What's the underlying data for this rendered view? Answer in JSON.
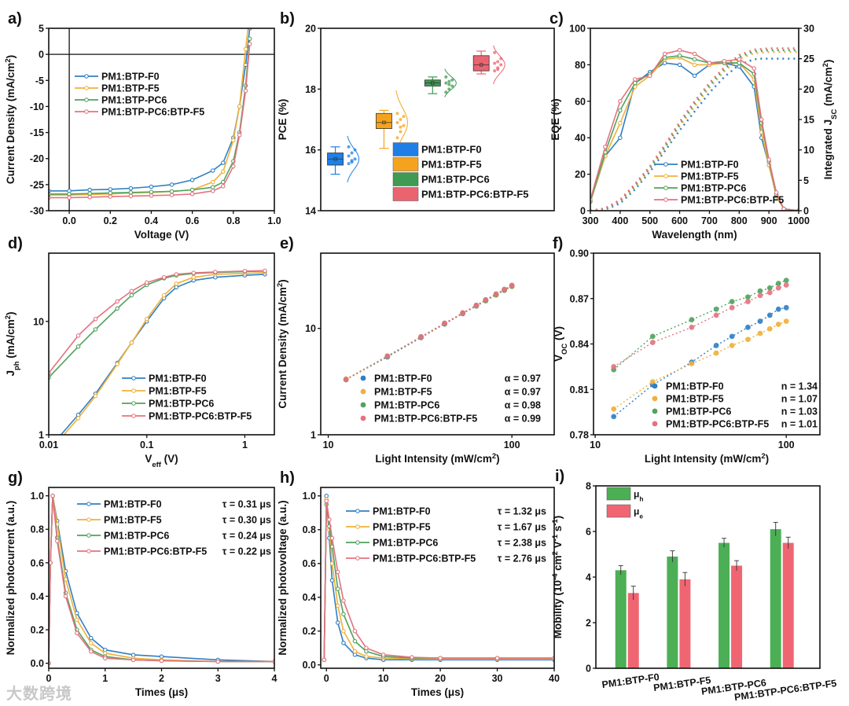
{
  "watermark": "大数跨境",
  "colors": {
    "F0": "#2f7fc4",
    "F5": "#f0b03a",
    "PC6": "#4fa35e",
    "PC6F5": "#e4727f",
    "box_F0": "#1f7fe6",
    "box_F5": "#f5a31f",
    "box_PC6": "#3f9a52",
    "box_PC6F5": "#ea6470",
    "mu_h": "#4caf55",
    "mu_e": "#ef6672"
  },
  "chart_data": [
    {
      "id": "a",
      "panel_label": "a)",
      "type": "line",
      "xlabel": "Voltage (V)",
      "ylabel": "Current Density (mA/cm^{2})",
      "xlim": [
        -0.1,
        1.0
      ],
      "ylim": [
        -30,
        5
      ],
      "xticks": [
        "0.0",
        "0.2",
        "0.4",
        "0.6",
        "0.8",
        "1.0"
      ],
      "yticks": [
        "-30",
        "-25",
        "-20",
        "-15",
        "-10",
        "-5",
        "0",
        "5"
      ],
      "x": [
        -0.1,
        0,
        0.1,
        0.2,
        0.3,
        0.4,
        0.5,
        0.6,
        0.7,
        0.75,
        0.8,
        0.83,
        0.86,
        0.88
      ],
      "series": [
        {
          "name": "PM1:BTP-F0",
          "color": "F0",
          "values": [
            -26.2,
            -26.2,
            -26.0,
            -25.9,
            -25.7,
            -25.4,
            -25.0,
            -24.1,
            -22.3,
            -20.8,
            -16,
            -10,
            -2,
            5
          ]
        },
        {
          "name": "PM1:BTP-F5",
          "color": "F5",
          "values": [
            -27.0,
            -27.0,
            -26.9,
            -26.8,
            -26.6,
            -26.5,
            -26.3,
            -26.0,
            -24.5,
            -22.5,
            -16.5,
            -10,
            1,
            8
          ]
        },
        {
          "name": "PM1:BTP-PC6",
          "color": "PC6",
          "values": [
            -26.8,
            -26.8,
            -26.7,
            -26.6,
            -26.5,
            -26.4,
            -26.3,
            -26.0,
            -25.5,
            -24.5,
            -20.5,
            -15,
            -6,
            3
          ]
        },
        {
          "name": "PM1:BTP-PC6:BTP-F5",
          "color": "PC6F5",
          "values": [
            -27.5,
            -27.5,
            -27.4,
            -27.3,
            -27.2,
            -27.1,
            -27.0,
            -26.8,
            -26.2,
            -25.3,
            -21.5,
            -15.5,
            -7,
            2
          ]
        }
      ]
    },
    {
      "id": "b",
      "panel_label": "b)",
      "type": "box",
      "xlabel": "",
      "ylabel": "PCE (%)",
      "ylim": [
        14,
        20
      ],
      "yticks": [
        "14",
        "16",
        "18",
        "20"
      ],
      "series": [
        {
          "name": "PM1:BTP-F0",
          "color": "box_F0",
          "mean": 15.7,
          "q1": 15.5,
          "q3": 15.9,
          "min": 15.2,
          "max": 16.1,
          "points": [
            15.55,
            15.6,
            15.7,
            15.8,
            15.9,
            16.0,
            16.1,
            15.65
          ]
        },
        {
          "name": "PM1:BTP-F5",
          "color": "box_F5",
          "mean": 16.9,
          "q1": 16.7,
          "q3": 17.2,
          "min": 16.05,
          "max": 17.3,
          "points": [
            16.4,
            16.6,
            16.8,
            16.9,
            17.0,
            17.1,
            17.2,
            16.75
          ]
        },
        {
          "name": "PM1:BTP-PC6",
          "color": "box_PC6",
          "mean": 18.2,
          "q1": 18.1,
          "q3": 18.3,
          "min": 17.85,
          "max": 18.4,
          "points": [
            17.9,
            18.0,
            18.1,
            18.2,
            18.25,
            18.3,
            18.4,
            18.15
          ]
        },
        {
          "name": "PM1:BTP-PC6:BTP-F5",
          "color": "box_PC6F5",
          "mean": 18.8,
          "q1": 18.6,
          "q3": 19.1,
          "min": 18.5,
          "max": 19.25,
          "points": [
            18.6,
            18.7,
            18.8,
            18.85,
            18.9,
            19.0,
            19.2,
            18.65
          ]
        }
      ]
    },
    {
      "id": "c",
      "panel_label": "c)",
      "type": "line",
      "xlabel": "Wavelength (nm)",
      "ylabel": "EQE (%)",
      "y2label": "Integrated J_{SC} (mA/cm^{2})",
      "xlim": [
        300,
        1000
      ],
      "ylim": [
        0,
        100
      ],
      "y2lim": [
        0,
        30
      ],
      "xticks": [
        "300",
        "400",
        "500",
        "600",
        "700",
        "800",
        "900",
        "1000"
      ],
      "yticks": [
        "0",
        "20",
        "40",
        "60",
        "80",
        "100"
      ],
      "y2ticks": [
        "0",
        "5",
        "10",
        "15",
        "20",
        "25",
        "30"
      ],
      "x": [
        300,
        350,
        400,
        450,
        500,
        550,
        600,
        650,
        700,
        750,
        800,
        850,
        875,
        900,
        925,
        950,
        1000
      ],
      "series": [
        {
          "name": "PM1:BTP-F0",
          "color": "F0",
          "values": [
            5,
            30,
            40,
            70,
            76,
            81,
            80,
            74,
            80,
            81,
            79,
            68,
            40,
            25,
            8,
            1,
            0
          ],
          "jsc": [
            0,
            0.2,
            1.2,
            3.5,
            6.4,
            9.8,
            13.2,
            16.3,
            19.4,
            22.0,
            24.0,
            24.9,
            25.0,
            25.0,
            25.0,
            25.0,
            25.0
          ]
        },
        {
          "name": "PM1:BTP-F5",
          "color": "F5",
          "values": [
            5,
            30,
            48,
            68,
            74,
            83,
            84,
            80,
            80,
            81,
            81,
            72,
            43,
            25,
            8,
            1,
            0
          ],
          "jsc": [
            0,
            0.3,
            1.5,
            3.9,
            6.8,
            10.3,
            13.9,
            17.1,
            20.2,
            22.9,
            25.0,
            25.9,
            26.0,
            26.1,
            26.1,
            26.1,
            26.1
          ]
        },
        {
          "name": "PM1:BTP-PC6",
          "color": "PC6",
          "values": [
            5,
            32,
            55,
            70,
            75,
            84,
            85,
            83,
            81,
            81,
            81,
            75,
            48,
            27,
            9,
            1,
            0
          ],
          "jsc": [
            0,
            0.3,
            1.6,
            4.1,
            7.0,
            10.5,
            14.2,
            17.6,
            20.6,
            23.3,
            25.3,
            26.2,
            26.3,
            26.4,
            26.4,
            26.4,
            26.4
          ]
        },
        {
          "name": "PM1:BTP-PC6:BTP-F5",
          "color": "PC6F5",
          "values": [
            6,
            35,
            60,
            72,
            74,
            86,
            88,
            86,
            81,
            82,
            83,
            78,
            50,
            28,
            10,
            1,
            0
          ],
          "jsc": [
            0,
            0.4,
            1.8,
            4.4,
            7.3,
            10.8,
            14.6,
            18.0,
            21.0,
            23.6,
            25.6,
            26.5,
            26.6,
            26.7,
            26.7,
            26.7,
            26.7
          ]
        }
      ]
    },
    {
      "id": "d",
      "panel_label": "d)",
      "type": "line",
      "xscale": "log",
      "yscale": "log",
      "xlabel": "V_{eff} (V)",
      "ylabel": "J_{ph} (mA/cm^{2})",
      "xlim": [
        0.01,
        2
      ],
      "ylim": [
        1,
        40
      ],
      "xticks": [
        "0.01",
        "0.1",
        "1"
      ],
      "yticks": [
        "1",
        "10"
      ],
      "x": [
        0.01,
        0.02,
        0.03,
        0.05,
        0.07,
        0.1,
        0.15,
        0.2,
        0.3,
        0.5,
        1,
        1.6
      ],
      "series": [
        {
          "name": "PM1:BTP-F0",
          "color": "F0",
          "values": [
            0.75,
            1.5,
            2.3,
            4.3,
            6.5,
            10,
            16,
            20,
            23,
            24.5,
            25.5,
            26
          ]
        },
        {
          "name": "PM1:BTP-F5",
          "color": "F5",
          "values": [
            0.7,
            1.4,
            2.2,
            4.2,
            6.5,
            10.5,
            17,
            21.5,
            24.5,
            26,
            26.5,
            27
          ]
        },
        {
          "name": "PM1:BTP-PC6",
          "color": "PC6",
          "values": [
            3.2,
            6,
            8.5,
            13,
            17,
            21,
            24,
            25.5,
            26.5,
            27,
            27.5,
            27.8
          ]
        },
        {
          "name": "PM1:BTP-PC6:BTP-F5",
          "color": "PC6F5",
          "values": [
            3.5,
            7.5,
            10.5,
            15,
            18.5,
            22,
            24.5,
            26,
            26.8,
            27.3,
            27.8,
            28
          ]
        }
      ]
    },
    {
      "id": "e",
      "panel_label": "e)",
      "type": "scatter",
      "xscale": "log",
      "yscale": "log",
      "xlabel": "Light Intensity (mW/cm^{2})",
      "ylabel": "Current Density (mA/cm^{2})",
      "xlim": [
        9.1,
        170
      ],
      "ylim": [
        1,
        51
      ],
      "xticks": [
        "10",
        "100"
      ],
      "yticks": [
        "1",
        "10"
      ],
      "x": [
        12.5,
        21,
        32,
        43,
        54,
        64,
        72,
        82,
        91,
        100
      ],
      "series": [
        {
          "name": "PM1:BTP-F0",
          "color": "F0",
          "note": "α = 0.97",
          "values": [
            3.3,
            5.4,
            8.2,
            11.0,
            13.8,
            16.2,
            18.2,
            20.6,
            22.8,
            24.8
          ]
        },
        {
          "name": "PM1:BTP-F5",
          "color": "F5",
          "note": "α = 0.97",
          "values": [
            3.35,
            5.5,
            8.3,
            11.1,
            13.9,
            16.3,
            18.3,
            20.7,
            22.9,
            24.9
          ]
        },
        {
          "name": "PM1:BTP-PC6",
          "color": "PC6",
          "note": "α = 0.98",
          "values": [
            3.3,
            5.45,
            8.3,
            11.1,
            13.95,
            16.4,
            18.4,
            20.9,
            23.1,
            25.2
          ]
        },
        {
          "name": "PM1:BTP-PC6:BTP-F5",
          "color": "PC6F5",
          "note": "α = 0.99",
          "values": [
            3.3,
            5.5,
            8.35,
            11.2,
            14.0,
            16.5,
            18.6,
            21.1,
            23.3,
            25.4
          ]
        }
      ]
    },
    {
      "id": "f",
      "panel_label": "f)",
      "type": "scatter",
      "xscale": "log",
      "xlabel": "Light Intensity (mW/cm^{2})",
      "ylabel": "V_{OC} (V)",
      "xlim": [
        9.8,
        150
      ],
      "ylim": [
        0.78,
        0.9
      ],
      "xticks": [
        "10",
        "100"
      ],
      "yticks": [
        "0.78",
        "0.81",
        "0.84",
        "0.87",
        "0.90"
      ],
      "x": [
        12.5,
        20,
        32,
        43,
        52,
        63,
        73,
        82,
        91,
        100
      ],
      "series": [
        {
          "name": "PM1:BTP-F0",
          "color": "F0",
          "note": "n = 1.34",
          "values": [
            0.792,
            0.813,
            0.828,
            0.839,
            0.845,
            0.851,
            0.855,
            0.859,
            0.863,
            0.864
          ]
        },
        {
          "name": "PM1:BTP-F5",
          "color": "F5",
          "note": "n = 1.07",
          "values": [
            0.797,
            0.815,
            0.827,
            0.834,
            0.839,
            0.843,
            0.847,
            0.85,
            0.853,
            0.855
          ]
        },
        {
          "name": "PM1:BTP-PC6",
          "color": "PC6",
          "note": "n = 1.03",
          "values": [
            0.823,
            0.845,
            0.856,
            0.863,
            0.868,
            0.871,
            0.875,
            0.877,
            0.88,
            0.882
          ]
        },
        {
          "name": "PM1:BTP-PC6:BTP-F5",
          "color": "PC6F5",
          "note": "n = 1.01",
          "values": [
            0.825,
            0.841,
            0.851,
            0.859,
            0.864,
            0.868,
            0.872,
            0.874,
            0.877,
            0.879
          ]
        }
      ]
    },
    {
      "id": "g",
      "panel_label": "g)",
      "type": "line",
      "xlabel": "Times (μs)",
      "ylabel": "Normalized photocurrent (a.u.)",
      "xlim": [
        0,
        4
      ],
      "ylim": [
        -0.03,
        1.05
      ],
      "xticks": [
        "0",
        "1",
        "2",
        "3",
        "4"
      ],
      "yticks": [
        "0.0",
        "0.2",
        "0.4",
        "0.6",
        "0.8",
        "1.0"
      ],
      "x": [
        0,
        0.03,
        0.07,
        0.15,
        0.3,
        0.5,
        0.75,
        1,
        1.5,
        2,
        3,
        4
      ],
      "series": [
        {
          "name": "PM1:BTP-F0",
          "color": "F0",
          "note": "τ = 0.31 μs",
          "values": [
            0,
            0.6,
            1.0,
            0.85,
            0.55,
            0.3,
            0.15,
            0.08,
            0.05,
            0.04,
            0.02,
            0.01
          ]
        },
        {
          "name": "PM1:BTP-F5",
          "color": "F5",
          "note": "τ = 0.30 μs",
          "values": [
            0,
            0.6,
            1.0,
            0.83,
            0.5,
            0.26,
            0.12,
            0.06,
            0.03,
            0.02,
            0.01,
            0.01
          ]
        },
        {
          "name": "PM1:BTP-PC6",
          "color": "PC6",
          "note": "τ = 0.24 μs",
          "values": [
            0,
            0.6,
            1.0,
            0.75,
            0.42,
            0.2,
            0.08,
            0.04,
            0.02,
            0.015,
            0.01,
            0.01
          ]
        },
        {
          "name": "PM1:BTP-PC6:BTP-F5",
          "color": "PC6F5",
          "note": "τ = 0.22 μs",
          "values": [
            0,
            0.6,
            1.0,
            0.73,
            0.4,
            0.18,
            0.07,
            0.03,
            0.02,
            0.015,
            0.01,
            0.01
          ]
        }
      ]
    },
    {
      "id": "h",
      "panel_label": "h)",
      "type": "line",
      "xlabel": "Times (μs)",
      "ylabel": "Normalized photovoltage (a.u.)",
      "xlim": [
        -1,
        40
      ],
      "ylim": [
        -0.02,
        1.05
      ],
      "xticks": [
        "0",
        "10",
        "20",
        "30",
        "40"
      ],
      "yticks": [
        "0.0",
        "0.2",
        "0.4",
        "0.6",
        "0.8",
        "1.0"
      ],
      "x": [
        -0.4,
        0,
        0.5,
        1,
        2,
        3,
        5,
        7,
        10,
        15,
        20,
        30,
        40
      ],
      "series": [
        {
          "name": "PM1:BTP-F0",
          "color": "F0",
          "note": "τ = 1.32 μs",
          "values": [
            0.03,
            1.0,
            0.75,
            0.5,
            0.25,
            0.13,
            0.06,
            0.04,
            0.03,
            0.03,
            0.03,
            0.03,
            0.03
          ]
        },
        {
          "name": "PM1:BTP-F5",
          "color": "F5",
          "note": "τ = 1.67 μs",
          "values": [
            0.03,
            0.98,
            0.8,
            0.6,
            0.35,
            0.2,
            0.08,
            0.05,
            0.04,
            0.035,
            0.035,
            0.035,
            0.035
          ]
        },
        {
          "name": "PM1:BTP-PC6",
          "color": "PC6",
          "note": "τ = 2.38 μs",
          "values": [
            0.03,
            0.95,
            0.82,
            0.7,
            0.45,
            0.3,
            0.14,
            0.08,
            0.05,
            0.04,
            0.04,
            0.04,
            0.04
          ]
        },
        {
          "name": "PM1:BTP-PC6:BTP-F5",
          "color": "PC6F5",
          "note": "τ = 2.76 μs",
          "values": [
            0.03,
            0.97,
            0.86,
            0.75,
            0.55,
            0.38,
            0.2,
            0.1,
            0.06,
            0.045,
            0.04,
            0.04,
            0.04
          ]
        }
      ]
    },
    {
      "id": "i",
      "panel_label": "i)",
      "type": "bar",
      "xlabel": "",
      "ylabel": "Mobility (10^{-4} cm^{2} V^{-1} s^{-1})",
      "ylim": [
        0,
        8
      ],
      "yticks": [
        "0",
        "2",
        "4",
        "6",
        "8"
      ],
      "categories": [
        "PM1:BTP-F0",
        "PM1:BTP-F5",
        "PM1:BTP-PC6",
        "PM1:BTP-PC6:BTP-F5"
      ],
      "series": [
        {
          "name": "μ_{h}",
          "color": "mu_h",
          "values": [
            4.3,
            4.9,
            5.5,
            6.1
          ],
          "errors": [
            0.2,
            0.25,
            0.2,
            0.3
          ]
        },
        {
          "name": "μ_{e}",
          "color": "mu_e",
          "values": [
            3.3,
            3.9,
            4.5,
            5.5
          ],
          "errors": [
            0.3,
            0.3,
            0.22,
            0.25
          ]
        }
      ]
    }
  ]
}
